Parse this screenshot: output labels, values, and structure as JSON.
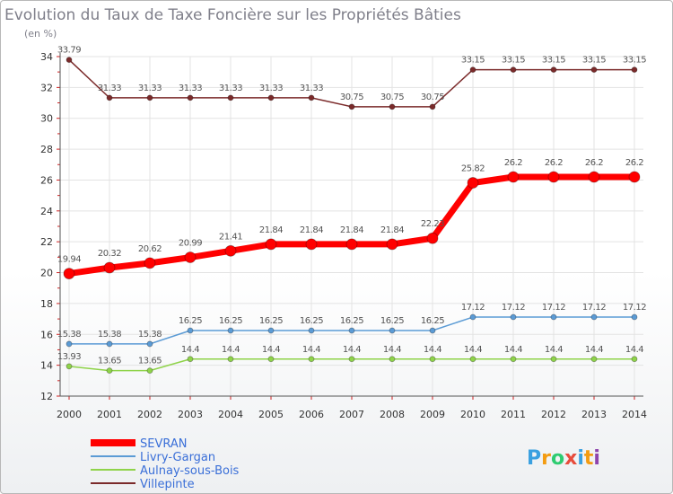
{
  "chart_data": {
    "type": "line",
    "title": "Evolution du Taux de Taxe Foncière sur les Propriétés Bâties",
    "subtitle": "(en %)",
    "xlabel": "",
    "ylabel": "",
    "ylim": [
      12,
      34
    ],
    "yticks": [
      12,
      14,
      16,
      18,
      20,
      22,
      24,
      26,
      28,
      30,
      32,
      34
    ],
    "grid": true,
    "legend_position": "bottom-left",
    "categories": [
      "2000",
      "2001",
      "2002",
      "2003",
      "2004",
      "2005",
      "2006",
      "2007",
      "2008",
      "2009",
      "2010",
      "2011",
      "2012",
      "2013",
      "2014"
    ],
    "series": [
      {
        "name": "SEVRAN",
        "color": "#ff0000",
        "values": [
          19.94,
          20.32,
          20.62,
          20.99,
          21.41,
          21.84,
          21.84,
          21.84,
          21.84,
          22.23,
          25.82,
          26.2,
          26.2,
          26.2,
          26.2
        ],
        "labels": [
          "19.94",
          "20.32",
          "20.62",
          "20.99",
          "21.41",
          "21.84",
          "21.84",
          "21.84",
          "21.84",
          "22.23",
          "25.82",
          "26.2",
          "26.2",
          "26.2",
          "26.2"
        ]
      },
      {
        "name": "Livry-Gargan",
        "color": "#5b9bd5",
        "values": [
          15.38,
          15.38,
          15.38,
          16.25,
          16.25,
          16.25,
          16.25,
          16.25,
          16.25,
          16.25,
          17.12,
          17.12,
          17.12,
          17.12,
          17.12
        ],
        "labels": [
          "15.38",
          "15.38",
          "15.38",
          "16.25",
          "16.25",
          "16.25",
          "16.25",
          "16.25",
          "16.25",
          "16.25",
          "17.12",
          "17.12",
          "17.12",
          "17.12",
          "17.12"
        ]
      },
      {
        "name": "Aulnay-sous-Bois",
        "color": "#8fd34a",
        "values": [
          13.93,
          13.65,
          13.65,
          14.4,
          14.4,
          14.4,
          14.4,
          14.4,
          14.4,
          14.4,
          14.4,
          14.4,
          14.4,
          14.4,
          14.4
        ],
        "labels": [
          "13.93",
          "13.65",
          "13.65",
          "14.4",
          "14.4",
          "14.4",
          "14.4",
          "14.4",
          "14.4",
          "14.4",
          "14.4",
          "14.4",
          "14.4",
          "14.4",
          "14.4"
        ]
      },
      {
        "name": "Villepinte",
        "color": "#7b2a2a",
        "values": [
          33.79,
          31.33,
          31.33,
          31.33,
          31.33,
          31.33,
          31.33,
          30.75,
          30.75,
          30.75,
          33.15,
          33.15,
          33.15,
          33.15,
          33.15
        ],
        "labels": [
          "33.79",
          "31.33",
          "31.33",
          "31.33",
          "31.33",
          "31.33",
          "31.33",
          "30.75",
          "30.75",
          "30.75",
          "33.15",
          "33.15",
          "33.15",
          "33.15",
          "33.15"
        ]
      }
    ]
  },
  "brand": {
    "letters": [
      "P",
      "r",
      "o",
      "x",
      "i",
      "t",
      "i"
    ],
    "colors": [
      "#3aa0e0",
      "#f39c12",
      "#2ecc71",
      "#e74c3c",
      "#3aa0e0",
      "#f39c12",
      "#8e44ad"
    ]
  }
}
